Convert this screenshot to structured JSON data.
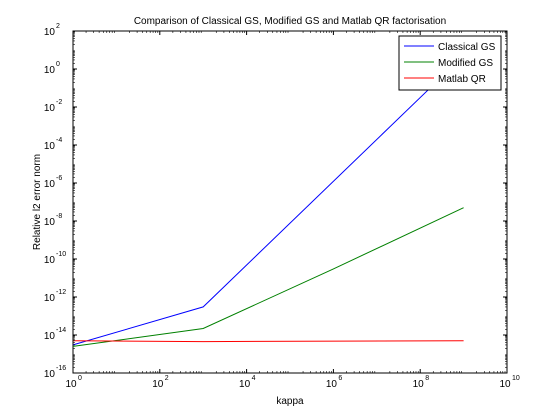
{
  "chart_data": {
    "type": "line",
    "title": "Comparison of Classical GS, Modified GS and Matlab QR factorisation",
    "xlabel": "kappa",
    "ylabel": "Relative l2 error norm",
    "xscale": "log",
    "yscale": "log",
    "xlim": [
      1,
      10000000000
    ],
    "ylim": [
      1e-16,
      100
    ],
    "xticks": [
      {
        "base": "10",
        "exp": "0",
        "value": 1
      },
      {
        "base": "10",
        "exp": "2",
        "value": 100
      },
      {
        "base": "10",
        "exp": "4",
        "value": 10000
      },
      {
        "base": "10",
        "exp": "6",
        "value": 1000000
      },
      {
        "base": "10",
        "exp": "8",
        "value": 100000000
      },
      {
        "base": "10",
        "exp": "10",
        "value": 10000000000
      }
    ],
    "yticks": [
      {
        "base": "10",
        "exp": "-16",
        "value": 1e-16
      },
      {
        "base": "10",
        "exp": "-14",
        "value": 1e-14
      },
      {
        "base": "10",
        "exp": "-12",
        "value": 1e-12
      },
      {
        "base": "10",
        "exp": "-10",
        "value": 1e-10
      },
      {
        "base": "10",
        "exp": "-8",
        "value": 1e-08
      },
      {
        "base": "10",
        "exp": "-6",
        "value": 1e-06
      },
      {
        "base": "10",
        "exp": "-4",
        "value": 0.0001
      },
      {
        "base": "10",
        "exp": "-2",
        "value": 0.01
      },
      {
        "base": "10",
        "exp": "0",
        "value": 1
      },
      {
        "base": "10",
        "exp": "2",
        "value": 100
      }
    ],
    "grid": false,
    "legend": "top-right",
    "series": [
      {
        "name": "Classical GS",
        "color": "#0000ff",
        "x": [
          1,
          1000,
          1000000000
        ],
        "y": [
          3e-15,
          3e-13,
          5
        ]
      },
      {
        "name": "Modified GS",
        "color": "#008000",
        "x": [
          1,
          1000,
          1000000,
          1000000000
        ],
        "y": [
          2.5e-15,
          2.2e-14,
          3e-11,
          5e-08
        ]
      },
      {
        "name": "Matlab QR",
        "color": "#ff0000",
        "x": [
          1,
          1000,
          1000000000
        ],
        "y": [
          5e-15,
          4.5e-15,
          5e-15
        ]
      }
    ]
  }
}
